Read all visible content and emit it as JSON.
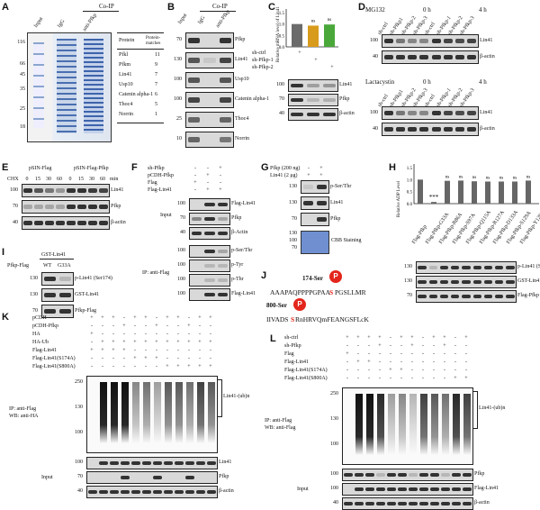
{
  "panels": {
    "A": "A",
    "B": "B",
    "C": "C",
    "D": "D",
    "E": "E",
    "F": "F",
    "G": "G",
    "H": "H",
    "I": "I",
    "J": "J",
    "K": "K",
    "L": "L"
  },
  "panelA": {
    "coip": "Co-IP",
    "lanes": [
      "Input",
      "IgG",
      "anti-Pfkp"
    ],
    "mw": [
      "116",
      "66",
      "45",
      "35",
      "25",
      "18"
    ],
    "table_headers": [
      "Protein",
      "Protein-matches"
    ],
    "table_rows": [
      [
        "Pfkl",
        "11"
      ],
      [
        "Pfkm",
        "9"
      ],
      [
        "Lin41",
        "7"
      ],
      [
        "Usp10",
        "7"
      ],
      [
        "Catenin alpha-1",
        "6"
      ],
      [
        "Thoc4",
        "5"
      ],
      [
        "Norrin",
        "1"
      ]
    ]
  },
  "panelB": {
    "coip": "Co-IP",
    "lanes": [
      "Input",
      "IgG",
      "anti-Pfkp"
    ],
    "rows": [
      {
        "mw": "70",
        "label": "Pfkp"
      },
      {
        "mw": "130",
        "label": "Lin41"
      },
      {
        "mw": "100",
        "label": "Usp10"
      },
      {
        "mw": "100",
        "label": "Catenin alpha-1"
      },
      {
        "mw": "25",
        "label": "Thoc4"
      },
      {
        "mw": "10",
        "label": "Norrin"
      }
    ]
  },
  "panelC": {
    "ylabel": "Relative mRNA level of Lin41",
    "yticks": [
      "0.0",
      "0.5",
      "1.0",
      "1.5"
    ],
    "sig": [
      "ns",
      "ns"
    ],
    "conds": [
      {
        "label": "sh-ctrl",
        "marks": [
          "+",
          "",
          ""
        ]
      },
      {
        "label": "sh-Pfkp-1",
        "marks": [
          "",
          "+",
          ""
        ]
      },
      {
        "label": "sh-Pfkp-2",
        "marks": [
          "",
          "",
          "+"
        ]
      }
    ],
    "blots": [
      {
        "mw": "100",
        "label": "Lin41"
      },
      {
        "mw": "70",
        "label": "Pfkp"
      },
      {
        "mw": "40",
        "label": "β-actin"
      }
    ]
  },
  "chart_data": {
    "type": "bar",
    "categories": [
      "sh-ctrl",
      "sh-Pfkp-1",
      "sh-Pfkp-2"
    ],
    "values": [
      1.0,
      0.93,
      0.98
    ],
    "ylabel": "Relative mRNA level of Lin41",
    "ylim": [
      0,
      1.5
    ],
    "colors": [
      "#6b6b6b",
      "#d99b1c",
      "#4aa83a"
    ]
  },
  "panelD": {
    "mg132": "MG132",
    "lacta": "Lactacystin",
    "time0": "0 h",
    "time4": "4 h",
    "lanes": [
      "sh-ctrl",
      "sh-Pfkp1",
      "sh-Pfkp-2",
      "sh-Pfkp-3",
      "sh-ctrl",
      "sh-Pfkp-1",
      "sh-Pfkp-2",
      "sh-Pfkp-3"
    ],
    "blots": [
      {
        "mw": "100",
        "label": "Lin41"
      },
      {
        "mw": "40",
        "label": "β-actin"
      }
    ]
  },
  "panelE": {
    "groups": [
      "pSIN-Flag",
      "pSIN-Flag-Pfkp"
    ],
    "chx": "CHX",
    "times": [
      "0",
      "15",
      "30",
      "60",
      "0",
      "15",
      "30",
      "60"
    ],
    "unit": "min",
    "blots": [
      {
        "mw": "100",
        "label": "Lin41"
      },
      {
        "mw": "70",
        "label": "Pfkp"
      },
      {
        "mw": "40",
        "label": "β-actin"
      }
    ]
  },
  "panelF": {
    "conds": [
      {
        "label": "sh-Pfkp",
        "marks": [
          "-",
          "-",
          "+"
        ]
      },
      {
        "label": "pCDH-Pfkp",
        "marks": [
          "-",
          "+",
          "-"
        ]
      },
      {
        "label": "Flag",
        "marks": [
          "+",
          "-",
          "-"
        ]
      },
      {
        "label": "Flag-Lin41",
        "marks": [
          "-",
          "+",
          "+"
        ]
      }
    ],
    "input": "Input",
    "ip": "IP: anti-Flag",
    "input_rows": [
      {
        "mw": "100",
        "label": "Flag-Lin41"
      },
      {
        "mw": "70",
        "label": "Pfkp"
      },
      {
        "mw": "40",
        "label": "β-Actin"
      }
    ],
    "ip_rows": [
      {
        "mw": "100",
        "label": "p-Ser/Thr"
      },
      {
        "mw": "100",
        "label": "p-Tyr"
      },
      {
        "mw": "100",
        "label": "p-Thr"
      },
      {
        "mw": "100",
        "label": "Flag-Lin41"
      }
    ]
  },
  "panelG": {
    "conds": [
      {
        "label": "Pfkp (200 ng)",
        "marks": [
          "-",
          "+"
        ]
      },
      {
        "label": "Lin41 (2 μg)",
        "marks": [
          "+",
          "+"
        ]
      }
    ],
    "rows": [
      {
        "mw": "130",
        "label": "p-Ser/Thr"
      },
      {
        "mw": "130",
        "label": "Lin41"
      },
      {
        "mw": "70",
        "label": "Pfkp"
      }
    ],
    "stain_mw": [
      "130",
      "100",
      "70"
    ],
    "stain": "CBB Staining"
  },
  "panelH": {
    "ylabel": "Relative ADP Level",
    "yticks": [
      "0.0",
      "0.5",
      "1.0",
      "1.5"
    ],
    "sig": [
      "***",
      "ns",
      "ns",
      "ns",
      "ns",
      "ns",
      "ns",
      "ns"
    ],
    "cats": [
      "Flag-Pfkp",
      "Flag-Pfkp-G33A",
      "Flag-Pfkp-R86A",
      "Flag-Pfkp-S97A",
      "Flag-Pfkp-Q115A",
      "Flag-Pfkp-R127A",
      "Flag-Pfkp-D133A",
      "Flag-Pfkp-S129A",
      "Flag-Pfkp-Y129A"
    ],
    "values": [
      1.0,
      0.07,
      0.95,
      0.96,
      0.93,
      0.92,
      0.92,
      0.92,
      0.96
    ],
    "blots": [
      {
        "mw": "130",
        "label": "p-Lin41 (Ser174)"
      },
      {
        "mw": "130",
        "label": "GST-Lin41"
      },
      {
        "mw": "70",
        "label": "Flag-Pfkp"
      }
    ]
  },
  "panelI": {
    "gst": "GST-Lin41",
    "pfkp": "Pfkp-Flag",
    "lanes": [
      "WT",
      "G33A"
    ],
    "rows": [
      {
        "mw": "130",
        "label": "p-Lin41 (Ser174)"
      },
      {
        "mw": "130",
        "label": "GST-Lin41"
      },
      {
        "mw": "70",
        "label": "Pfkp-Flag"
      }
    ]
  },
  "panelJ": {
    "site1": "174-Ser",
    "seq1": "AAAPAQPPPPGPAA",
    "seq1b": "PGSLLMR",
    "site2": "800-Ser",
    "seq2": "IIVADS",
    "seq2b": "RnHRVQmFEANGSFLcK",
    "p": "P"
  },
  "panelK": {
    "conds": [
      {
        "label": "pCDH",
        "marks": [
          "+",
          "+",
          "+",
          "-",
          "+",
          "+",
          "-",
          "+",
          "+",
          "-",
          "+",
          "+"
        ]
      },
      {
        "label": "pCDH-Pfkp",
        "marks": [
          "-",
          "-",
          "-",
          "+",
          "-",
          "-",
          "+",
          "-",
          "-",
          "+",
          "-",
          "-"
        ]
      },
      {
        "label": "HA",
        "marks": [
          "+",
          "-",
          "-",
          "-",
          "-",
          "-",
          "-",
          "-",
          "-",
          "-",
          "-",
          "-"
        ]
      },
      {
        "label": "HA-Ub",
        "marks": [
          "-",
          "+",
          "+",
          "+",
          "+",
          "+",
          "+",
          "+",
          "+",
          "+",
          "+",
          "+"
        ]
      },
      {
        "label": "Flag-Lin41",
        "marks": [
          "+",
          "+",
          "+",
          "+",
          "-",
          "-",
          "-",
          "-",
          "-",
          "-",
          "-",
          "-"
        ]
      },
      {
        "label": "Flag-Lin41(S174A)",
        "marks": [
          "-",
          "-",
          "-",
          "-",
          "+",
          "+",
          "+",
          "-",
          "-",
          "-",
          "-",
          "-"
        ]
      },
      {
        "label": "Flag-Lin41(S800A)",
        "marks": [
          "-",
          "-",
          "-",
          "-",
          "-",
          "-",
          "-",
          "+",
          "+",
          "+",
          "+",
          "+"
        ]
      }
    ],
    "ip": "IP: anti-Flag",
    "wb": "WB: anti-HA",
    "ub": "Lin41-(ub)n",
    "mw": [
      "250",
      "130",
      "100"
    ],
    "input": "Input",
    "input_rows": [
      {
        "mw": "100",
        "label": "Lin41"
      },
      {
        "mw": "70",
        "label": "Pfkp"
      },
      {
        "mw": "40",
        "label": "β-actin"
      }
    ]
  },
  "panelL": {
    "conds": [
      {
        "label": "sh-ctrl",
        "marks": [
          "+",
          "+",
          "+",
          "+",
          "-",
          "+",
          "+",
          "-",
          "+",
          "+",
          "-",
          "+"
        ]
      },
      {
        "label": "sh-Pfkp",
        "marks": [
          "-",
          "-",
          "-",
          "+",
          "-",
          "-",
          "+",
          "-",
          "-",
          "+",
          "-",
          "-"
        ]
      },
      {
        "label": "Flag",
        "marks": [
          "+",
          "-",
          "-",
          "-",
          "-",
          "-",
          "-",
          "-",
          "-",
          "-",
          "-",
          "-"
        ]
      },
      {
        "label": "Flag-Lin41",
        "marks": [
          "-",
          "+",
          "+",
          "-",
          "-",
          "-",
          "-",
          "-",
          "-",
          "-",
          "-",
          "-"
        ]
      },
      {
        "label": "Flag-Lin41(S174A)",
        "marks": [
          "-",
          "-",
          "-",
          "-",
          "+",
          "+",
          "-",
          "-",
          "-",
          "-",
          "-",
          "-"
        ]
      },
      {
        "label": "Flag-Lin41(S800A)",
        "marks": [
          "-",
          "-",
          "-",
          "-",
          "-",
          "-",
          "-",
          "-",
          "-",
          "-",
          "+",
          "+"
        ]
      }
    ],
    "ip": "IP: anti-Flag",
    "wb": "WB: anti-Flag",
    "ub": "Lin41-(ub)n",
    "mw": [
      "250",
      "130",
      "100"
    ],
    "input": "Input",
    "input_rows": [
      {
        "mw": "100",
        "label": "Pfkp"
      },
      {
        "mw": "100",
        "label": "Flag-Lin41"
      },
      {
        "mw": "40",
        "label": "β-actin"
      }
    ]
  }
}
